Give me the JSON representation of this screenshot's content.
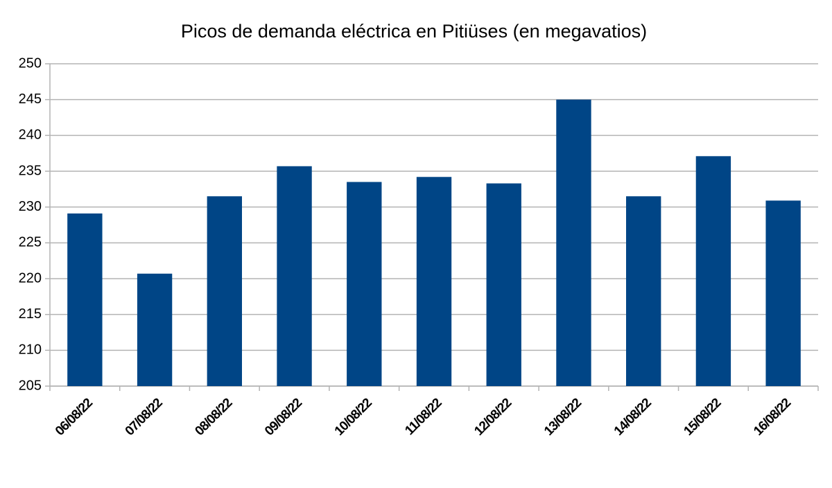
{
  "chart_data": {
    "type": "bar",
    "title": "Picos de demanda eléctrica en Pitiüses (en megavatios)",
    "categories": [
      "06/08/22",
      "07/08/22",
      "08/08/22",
      "09/08/22",
      "10/08/22",
      "11/08/22",
      "12/08/22",
      "13/08/22",
      "14/08/22",
      "15/08/22",
      "16/08/22"
    ],
    "values": [
      229.1,
      220.7,
      231.5,
      235.7,
      233.5,
      234.2,
      233.3,
      245,
      231.5,
      237.1,
      230.9
    ],
    "color": "#004586",
    "ylim": [
      205,
      250
    ],
    "yticks": [
      205,
      210,
      215,
      220,
      225,
      230,
      235,
      240,
      245,
      250
    ],
    "grid": true
  }
}
